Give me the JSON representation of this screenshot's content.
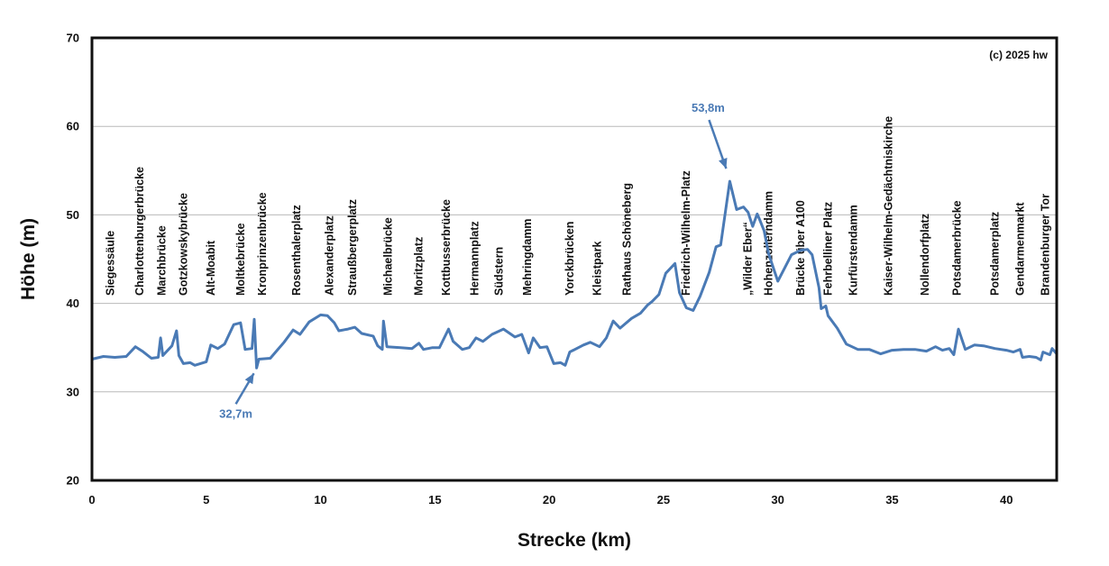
{
  "chart_data": {
    "type": "line",
    "title": "",
    "xlabel": "Strecke (km)",
    "ylabel": "Höhe (m)",
    "xlim": [
      0,
      42.2
    ],
    "ylim": [
      20,
      70
    ],
    "x_ticks": [
      "0",
      "5",
      "10",
      "15",
      "20",
      "25",
      "30",
      "35",
      "40"
    ],
    "y_ticks": [
      "20",
      "30",
      "40",
      "50",
      "60",
      "70"
    ],
    "grid": "horizontal",
    "copyright": "(c) 2025 hw",
    "line_color": "#4a7ab5",
    "series": [
      {
        "values": [
          [
            0,
            33.7
          ],
          [
            0.5,
            34.0
          ],
          [
            1.0,
            33.9
          ],
          [
            1.5,
            34.0
          ],
          [
            1.9,
            35.1
          ],
          [
            2.2,
            34.6
          ],
          [
            2.6,
            33.8
          ],
          [
            2.9,
            33.9
          ],
          [
            3.0,
            36.1
          ],
          [
            3.1,
            34.1
          ],
          [
            3.5,
            35.2
          ],
          [
            3.7,
            36.9
          ],
          [
            3.8,
            34.1
          ],
          [
            4.0,
            33.2
          ],
          [
            4.3,
            33.3
          ],
          [
            4.5,
            33.0
          ],
          [
            5.0,
            33.4
          ],
          [
            5.2,
            35.3
          ],
          [
            5.5,
            34.9
          ],
          [
            5.8,
            35.4
          ],
          [
            6.2,
            37.6
          ],
          [
            6.5,
            37.8
          ],
          [
            6.7,
            34.8
          ],
          [
            7.0,
            34.9
          ],
          [
            7.1,
            38.2
          ],
          [
            7.2,
            32.7
          ],
          [
            7.3,
            33.7
          ],
          [
            7.8,
            33.8
          ],
          [
            8.1,
            34.7
          ],
          [
            8.4,
            35.6
          ],
          [
            8.8,
            37.0
          ],
          [
            9.1,
            36.5
          ],
          [
            9.5,
            37.9
          ],
          [
            10.0,
            38.7
          ],
          [
            10.3,
            38.6
          ],
          [
            10.6,
            37.8
          ],
          [
            10.8,
            36.9
          ],
          [
            11.2,
            37.1
          ],
          [
            11.5,
            37.3
          ],
          [
            11.8,
            36.6
          ],
          [
            12.3,
            36.3
          ],
          [
            12.5,
            35.2
          ],
          [
            12.7,
            34.8
          ],
          [
            12.75,
            38.0
          ],
          [
            12.9,
            35.1
          ],
          [
            13.5,
            35.0
          ],
          [
            14.0,
            34.9
          ],
          [
            14.3,
            35.5
          ],
          [
            14.5,
            34.8
          ],
          [
            14.9,
            35.0
          ],
          [
            15.2,
            35.0
          ],
          [
            15.6,
            37.1
          ],
          [
            15.8,
            35.7
          ],
          [
            16.2,
            34.8
          ],
          [
            16.5,
            35.0
          ],
          [
            16.8,
            36.1
          ],
          [
            17.1,
            35.7
          ],
          [
            17.5,
            36.5
          ],
          [
            18.0,
            37.1
          ],
          [
            18.5,
            36.2
          ],
          [
            18.8,
            36.5
          ],
          [
            19.1,
            34.4
          ],
          [
            19.3,
            36.1
          ],
          [
            19.6,
            35.0
          ],
          [
            19.9,
            35.1
          ],
          [
            20.2,
            33.2
          ],
          [
            20.5,
            33.3
          ],
          [
            20.7,
            33.0
          ],
          [
            20.9,
            34.5
          ],
          [
            21.5,
            35.3
          ],
          [
            21.8,
            35.6
          ],
          [
            22.2,
            35.1
          ],
          [
            22.5,
            36.1
          ],
          [
            22.8,
            38.0
          ],
          [
            23.1,
            37.2
          ],
          [
            23.6,
            38.3
          ],
          [
            24.0,
            38.9
          ],
          [
            24.3,
            39.8
          ],
          [
            24.5,
            40.2
          ],
          [
            24.8,
            41.0
          ],
          [
            25.1,
            43.4
          ],
          [
            25.5,
            44.5
          ],
          [
            25.7,
            41.2
          ],
          [
            26.0,
            39.5
          ],
          [
            26.3,
            39.2
          ],
          [
            26.6,
            40.8
          ],
          [
            27.0,
            43.5
          ],
          [
            27.3,
            46.4
          ],
          [
            27.5,
            46.6
          ],
          [
            27.9,
            53.8
          ],
          [
            28.2,
            50.6
          ],
          [
            28.5,
            50.9
          ],
          [
            28.7,
            50.3
          ],
          [
            28.9,
            48.7
          ],
          [
            29.1,
            50.1
          ],
          [
            29.2,
            49.5
          ],
          [
            29.4,
            48.2
          ],
          [
            29.6,
            45.6
          ],
          [
            30.0,
            42.5
          ],
          [
            30.3,
            44.0
          ],
          [
            30.6,
            45.5
          ],
          [
            31.0,
            46.0
          ],
          [
            31.3,
            46.1
          ],
          [
            31.5,
            45.5
          ],
          [
            31.8,
            41.8
          ],
          [
            31.9,
            39.4
          ],
          [
            32.1,
            39.7
          ],
          [
            32.2,
            38.6
          ],
          [
            32.6,
            37.2
          ],
          [
            33.0,
            35.4
          ],
          [
            33.5,
            34.8
          ],
          [
            34.0,
            34.8
          ],
          [
            34.5,
            34.3
          ],
          [
            35.0,
            34.7
          ],
          [
            35.5,
            34.8
          ],
          [
            36.0,
            34.8
          ],
          [
            36.5,
            34.6
          ],
          [
            36.9,
            35.1
          ],
          [
            37.2,
            34.7
          ],
          [
            37.5,
            34.9
          ],
          [
            37.7,
            34.2
          ],
          [
            37.9,
            37.1
          ],
          [
            38.2,
            34.8
          ],
          [
            38.6,
            35.3
          ],
          [
            39.0,
            35.2
          ],
          [
            39.5,
            34.9
          ],
          [
            40.0,
            34.7
          ],
          [
            40.3,
            34.5
          ],
          [
            40.6,
            34.8
          ],
          [
            40.7,
            33.9
          ],
          [
            41.0,
            34.0
          ],
          [
            41.3,
            33.9
          ],
          [
            41.5,
            33.6
          ],
          [
            41.6,
            34.5
          ],
          [
            41.9,
            34.2
          ],
          [
            42.0,
            34.9
          ],
          [
            42.2,
            34.3
          ]
        ]
      }
    ],
    "places": [
      {
        "name": "Siegessäule",
        "x": 0.8
      },
      {
        "name": "Charlottenburgerbrücke",
        "x": 2.1
      },
      {
        "name": "Marchbrücke",
        "x": 3.05
      },
      {
        "name": "Gotzkowskybrücke",
        "x": 4.0
      },
      {
        "name": "Alt-Moabit",
        "x": 5.2
      },
      {
        "name": "Moltkebrücke",
        "x": 6.5
      },
      {
        "name": "Kronprinzenbrücke",
        "x": 7.45
      },
      {
        "name": "Rosenthalerplatz",
        "x": 8.95
      },
      {
        "name": "Alexanderplatz",
        "x": 10.4
      },
      {
        "name": "Straußbergerplatz",
        "x": 11.4
      },
      {
        "name": "Michaelbrücke",
        "x": 12.95
      },
      {
        "name": "Moritzplatz",
        "x": 14.3
      },
      {
        "name": "Kottbusserbrücke",
        "x": 15.5
      },
      {
        "name": "Hermannplatz",
        "x": 16.75
      },
      {
        "name": "Südstern",
        "x": 17.8
      },
      {
        "name": "Mehringdamm",
        "x": 19.05
      },
      {
        "name": "Yorckbrücken",
        "x": 20.9
      },
      {
        "name": "Kleistpark",
        "x": 22.1
      },
      {
        "name": "Rathaus Schöneberg",
        "x": 23.4
      },
      {
        "name": "Friedrich-Wilhelm-Platz",
        "x": 26.0
      },
      {
        "name": "„Wilder Eber“",
        "x": 28.7
      },
      {
        "name": "Hohenzollerndamm",
        "x": 29.6
      },
      {
        "name": "Brücke über A100",
        "x": 31.0
      },
      {
        "name": "Fehrbelliner Platz",
        "x": 32.2
      },
      {
        "name": "Kurfürstendamm",
        "x": 33.3
      },
      {
        "name": "Kaiser-Wilhelm-Gedächtniskirche",
        "x": 34.85
      },
      {
        "name": "Nollendorfplatz",
        "x": 36.45
      },
      {
        "name": "Potsdamerbrücke",
        "x": 37.85
      },
      {
        "name": "Potsdamerplatz",
        "x": 39.5
      },
      {
        "name": "Gendarmenmarkt",
        "x": 40.6
      },
      {
        "name": "Brandenburger Tor",
        "x": 41.7
      }
    ],
    "annotations": [
      {
        "text": "53,8m",
        "x": 27.9,
        "y": 53.8,
        "position": "above-left"
      },
      {
        "text": "32,7m",
        "x": 7.2,
        "y": 32.7,
        "position": "below-left"
      }
    ]
  }
}
